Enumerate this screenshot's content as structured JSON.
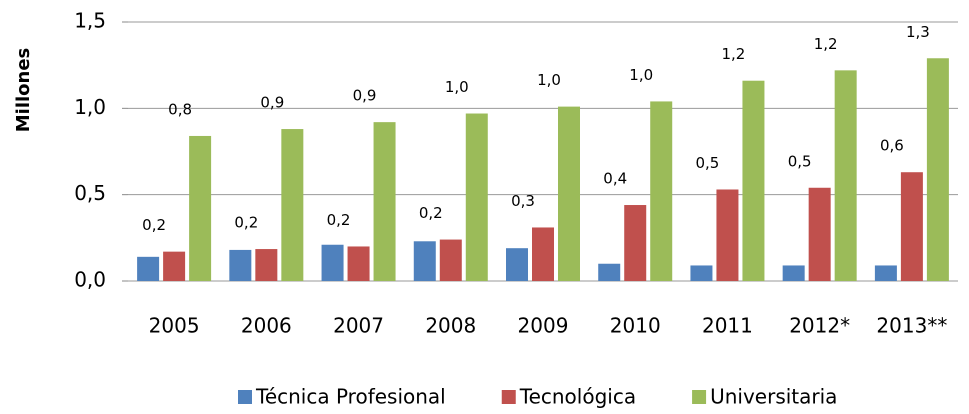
{
  "chart_data": {
    "type": "bar",
    "y_label": "Millones",
    "categories": [
      "2005",
      "2006",
      "2007",
      "2008",
      "2009",
      "2010",
      "2011",
      "2012*",
      "2013**"
    ],
    "series": [
      {
        "name": "Técnica Profesional",
        "color": "#4f81bd",
        "values": [
          0.14,
          0.18,
          0.21,
          0.23,
          0.19,
          0.1,
          0.09,
          0.09,
          0.09
        ]
      },
      {
        "name": "Tecnológica",
        "color": "#c0504d",
        "values": [
          0.17,
          0.185,
          0.2,
          0.24,
          0.31,
          0.44,
          0.53,
          0.54,
          0.63
        ],
        "value_labels": [
          "0,2",
          "0,2",
          "0,2",
          "0,2",
          "0,3",
          "0,4",
          "0,5",
          "0,5",
          "0,6"
        ]
      },
      {
        "name": "Universitaria",
        "color": "#9bbb59",
        "values": [
          0.84,
          0.88,
          0.92,
          0.97,
          1.01,
          1.04,
          1.16,
          1.22,
          1.29
        ],
        "value_labels": [
          "0,8",
          "0,9",
          "0,9",
          "1,0",
          "1,0",
          "1,0",
          "1,2",
          "1,2",
          "1,3"
        ]
      }
    ],
    "ylim": [
      0,
      1.5
    ],
    "yticks": [
      {
        "value": 0,
        "label": "0,0"
      },
      {
        "value": 0.5,
        "label": "0,5"
      },
      {
        "value": 1.0,
        "label": "1,0"
      },
      {
        "value": 1.5,
        "label": "1,5"
      }
    ],
    "grid": true,
    "legend": "bottom"
  }
}
